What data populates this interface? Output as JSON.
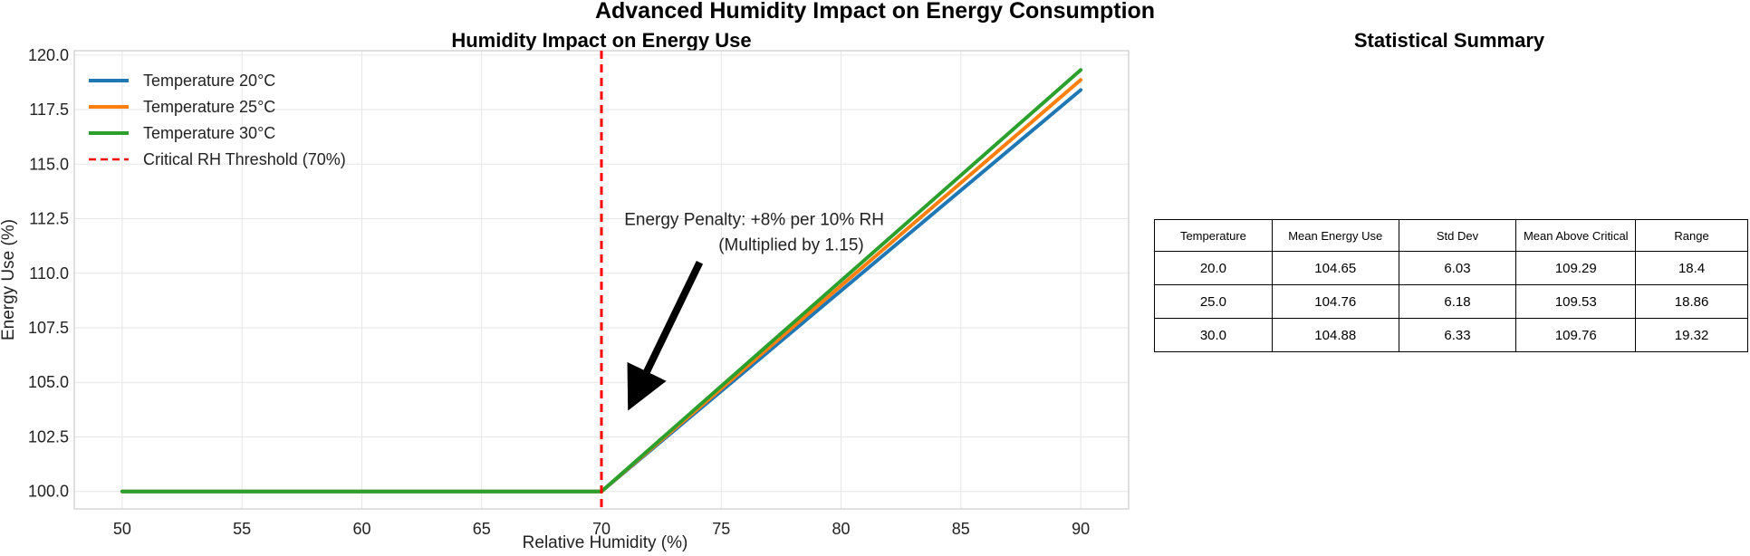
{
  "figure_title": "Advanced Humidity Impact on Energy Consumption",
  "chart_data": {
    "type": "line",
    "title": "Humidity Impact on Energy Use",
    "xlabel": "Relative Humidity (%)",
    "ylabel": "Energy Use (%)",
    "xlim": [
      48,
      92
    ],
    "ylim": [
      99.2,
      120.2
    ],
    "xticks": [
      50,
      55,
      60,
      65,
      70,
      75,
      80,
      85,
      90
    ],
    "yticks": [
      100.0,
      102.5,
      105.0,
      107.5,
      110.0,
      112.5,
      115.0,
      117.5,
      120.0
    ],
    "xtick_labels": [
      "50",
      "55",
      "60",
      "65",
      "70",
      "75",
      "80",
      "85",
      "90"
    ],
    "ytick_labels": [
      "100.0",
      "102.5",
      "105.0",
      "107.5",
      "110.0",
      "112.5",
      "115.0",
      "117.5",
      "120.0"
    ],
    "grid": true,
    "legend_position": "top-left",
    "series": [
      {
        "name": "Temperature 20°C",
        "color": "#1f77b4",
        "x": [
          50,
          70,
          90
        ],
        "y": [
          100.0,
          100.0,
          118.4
        ]
      },
      {
        "name": "Temperature 25°C",
        "color": "#ff7f0e",
        "x": [
          50,
          70,
          90
        ],
        "y": [
          100.0,
          100.0,
          118.86
        ]
      },
      {
        "name": "Temperature 30°C",
        "color": "#2ca02c",
        "x": [
          50,
          70,
          90
        ],
        "y": [
          100.0,
          100.0,
          119.32
        ]
      }
    ],
    "threshold": {
      "name": "Critical RH Threshold (70%)",
      "x": 70,
      "color": "#ff0000"
    },
    "annotation": {
      "line1": "Energy Penalty: +8% per 10% RH",
      "line2": "(Multiplied by 1.15)",
      "text_x": 70.5,
      "text_y": 112.5,
      "arrow_from": [
        74.1,
        110.5
      ],
      "arrow_to": [
        71.5,
        104.6
      ]
    }
  },
  "stats": {
    "title": "Statistical Summary",
    "columns": [
      "Temperature",
      "Mean Energy Use",
      "Std Dev",
      "Mean Above Critical",
      "Range"
    ],
    "rows": [
      [
        "20.0",
        "104.65",
        "6.03",
        "109.29",
        "18.4"
      ],
      [
        "25.0",
        "104.76",
        "6.18",
        "109.53",
        "18.86"
      ],
      [
        "30.0",
        "104.88",
        "6.33",
        "109.76",
        "19.32"
      ]
    ]
  }
}
